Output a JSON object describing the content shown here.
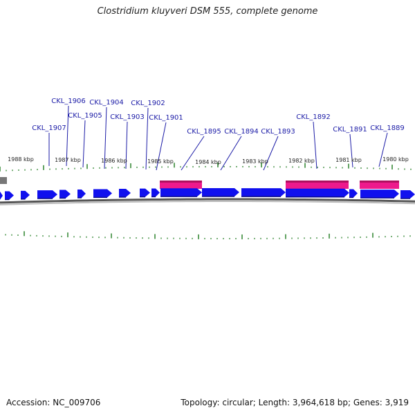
{
  "title": "Clostridium kluyveri DSM 555, complete genome",
  "accession_label": "Accession: NC_009706",
  "summary_label": "Topology: circular; Length: 3,964,618 bp; Genes: 3,919",
  "colors": {
    "forward_gene": "#1010ee",
    "feature_pink": "#ee1a8c",
    "tick_green": "#1d7a1d",
    "backbone": "#888888",
    "label_blue": "#1a1aa6"
  },
  "kbp_labels": [
    "1988 kbp",
    "1987 kbp",
    "1986 kbp",
    "1985 kbp",
    "1984 kbp",
    "1983 kbp",
    "1982 kbp",
    "1981 kbp",
    "1980 kbp"
  ],
  "gene_labels": [
    "CKL_1907",
    "CKL_1906",
    "CKL_1905",
    "CKL_1904",
    "CKL_1903",
    "CKL_1902",
    "CKL_1901",
    "CKL_1895",
    "CKL_1894",
    "CKL_1893",
    "CKL_1892",
    "CKL_1891",
    "CKL_1889"
  ]
}
